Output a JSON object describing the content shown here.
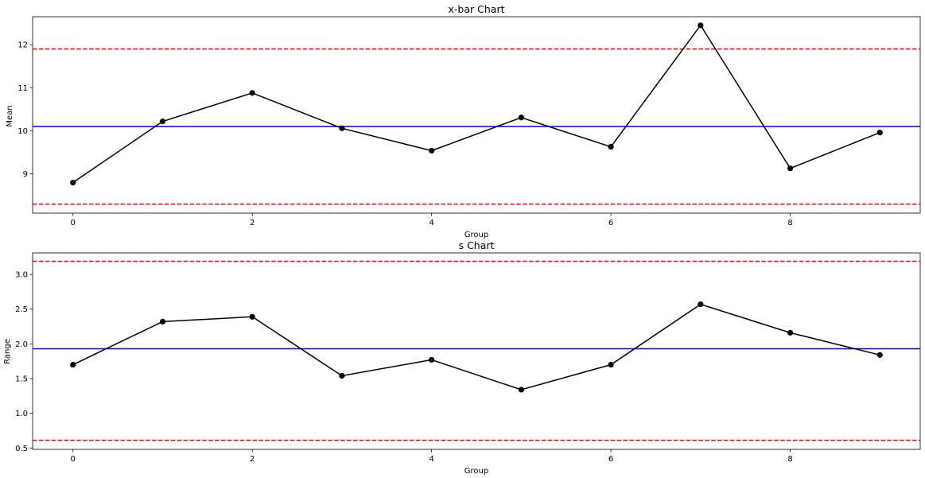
{
  "chart_data": [
    {
      "type": "line",
      "title": "x-bar Chart",
      "xlabel": "Group",
      "ylabel": "Mean",
      "x": [
        0,
        1,
        2,
        3,
        4,
        5,
        6,
        7,
        8,
        9
      ],
      "values": [
        8.8,
        10.22,
        10.88,
        10.06,
        9.54,
        10.31,
        9.63,
        12.45,
        9.13,
        9.96
      ],
      "center_line": 10.1,
      "ucl": 11.9,
      "lcl": 8.3,
      "xlim": [
        -0.45,
        9.45
      ],
      "ylim": [
        8.09,
        12.65
      ],
      "xticks": [
        0,
        2,
        4,
        6,
        8
      ],
      "yticks": [
        9,
        10,
        11,
        12
      ],
      "grid": false,
      "colors": {
        "line": "#000000",
        "center": "#0000ff",
        "limits": "#ff0000"
      }
    },
    {
      "type": "line",
      "title": "s Chart",
      "xlabel": "Group",
      "ylabel": "Range",
      "x": [
        0,
        1,
        2,
        3,
        4,
        5,
        6,
        7,
        8,
        9
      ],
      "values": [
        1.7,
        2.32,
        2.39,
        1.54,
        1.77,
        1.34,
        1.7,
        2.57,
        2.16,
        1.84
      ],
      "center_line": 1.93,
      "ucl": 3.19,
      "lcl": 0.61,
      "xlim": [
        -0.45,
        9.45
      ],
      "ylim": [
        0.48,
        3.31
      ],
      "xticks": [
        0,
        2,
        4,
        6,
        8
      ],
      "yticks": [
        0.5,
        1.0,
        1.5,
        2.0,
        2.5,
        3.0
      ],
      "ytick_labels": [
        "0.5",
        "1.0",
        "1.5",
        "2.0",
        "2.5",
        "3.0"
      ],
      "grid": false,
      "colors": {
        "line": "#000000",
        "center": "#0000ff",
        "limits": "#ff0000"
      }
    }
  ]
}
